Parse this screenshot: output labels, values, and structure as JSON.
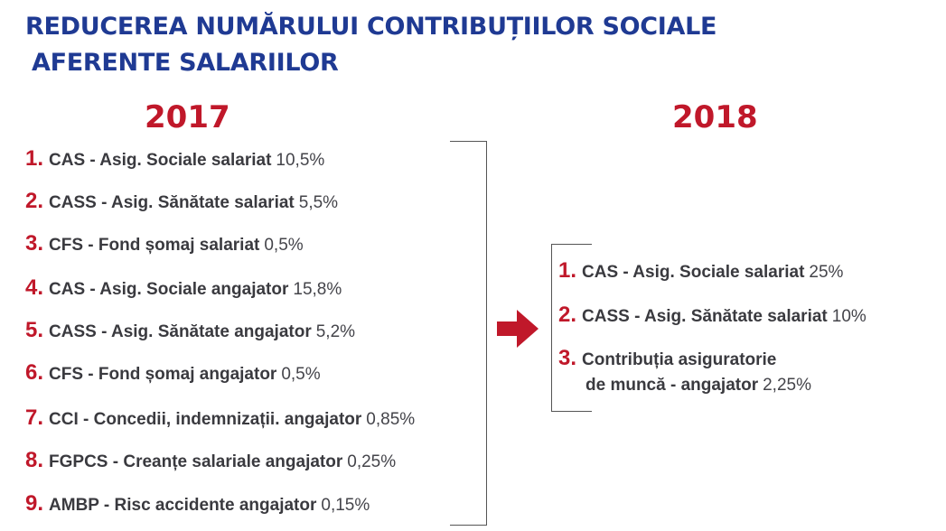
{
  "title": {
    "line1": "REDUCEREA NUMĂRULUI CONTRIBUȚIILOR SOCIALE",
    "line2": "AFERENTE SALARIILOR"
  },
  "colors": {
    "title_blue": "#1f3a93",
    "accent_red": "#c0182a",
    "text_gray": "#3a3a3f"
  },
  "left": {
    "year": "2017",
    "items": [
      {
        "num": "1.",
        "label": "CAS - Asig. Sociale salariat",
        "value": "10,5%"
      },
      {
        "num": "2.",
        "label": "CASS - Asig. Sănătate salariat",
        "value": "5,5%"
      },
      {
        "num": "3.",
        "label": "CFS - Fond șomaj salariat",
        "value": "0,5%"
      },
      {
        "num": "4.",
        "label": "CAS - Asig. Sociale angajator",
        "value": "15,8%"
      },
      {
        "num": "5.",
        "label": "CASS - Asig. Sănătate angajator",
        "value": "5,2%"
      },
      {
        "num": "6.",
        "label": "CFS - Fond șomaj angajator",
        "value": "0,5%"
      },
      {
        "num": "7.",
        "label": "CCI - Concedii, indemnizații. angajator",
        "value": "0,85%"
      },
      {
        "num": "8.",
        "label": "FGPCS - Creanțe salariale angajator",
        "value": "0,25%"
      },
      {
        "num": "9.",
        "label": "AMBP - Risc accidente angajator",
        "value": "0,15%"
      }
    ]
  },
  "right": {
    "year": "2018",
    "items": [
      {
        "num": "1.",
        "label": "CAS - Asig. Sociale salariat",
        "value": "25%"
      },
      {
        "num": "2.",
        "label": "CASS - Asig. Sănătate salariat",
        "value": "10%"
      },
      {
        "num": "3.",
        "label_line1": "Contribuția asiguratorie",
        "label_line2": "de muncă - angajator",
        "value": "2,25%"
      }
    ]
  },
  "icons": {
    "arrow": "arrow-right-icon"
  }
}
